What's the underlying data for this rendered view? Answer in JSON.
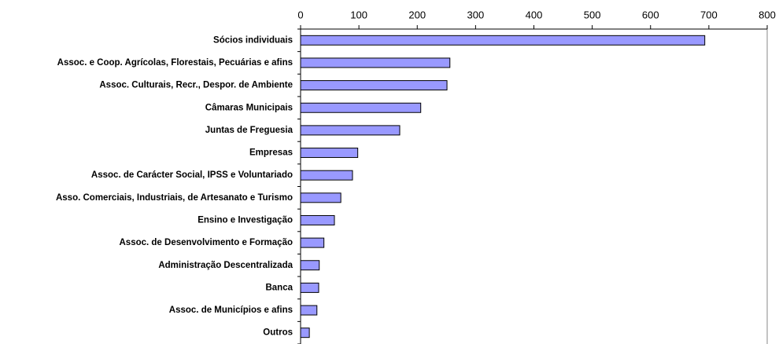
{
  "chart_data": {
    "type": "bar",
    "orientation": "horizontal",
    "categories": [
      "Sócios individuais",
      "Assoc. e Coop. Agrícolas, Florestais, Pecuárias e afins",
      "Assoc. Culturais, Recr., Despor. de Ambiente",
      "Câmaras Municipais",
      "Juntas de Freguesia",
      "Empresas",
      "Assoc. de Carácter Social, IPSS e Voluntariado",
      "Asso. Comerciais, Industriais, de Artesanato e Turismo",
      "Ensino e Investigação",
      "Assoc. de Desenvolvimento e Formação",
      "Administração Descentralizada",
      "Banca",
      "Assoc. de Municípios e afins",
      "Outros"
    ],
    "values": [
      693,
      256,
      251,
      206,
      170,
      98,
      89,
      69,
      58,
      40,
      32,
      31,
      28,
      15
    ],
    "color": "#9999ff",
    "xlim": [
      0,
      800
    ],
    "xticks": [
      0,
      100,
      200,
      300,
      400,
      500,
      600,
      700,
      800
    ]
  }
}
